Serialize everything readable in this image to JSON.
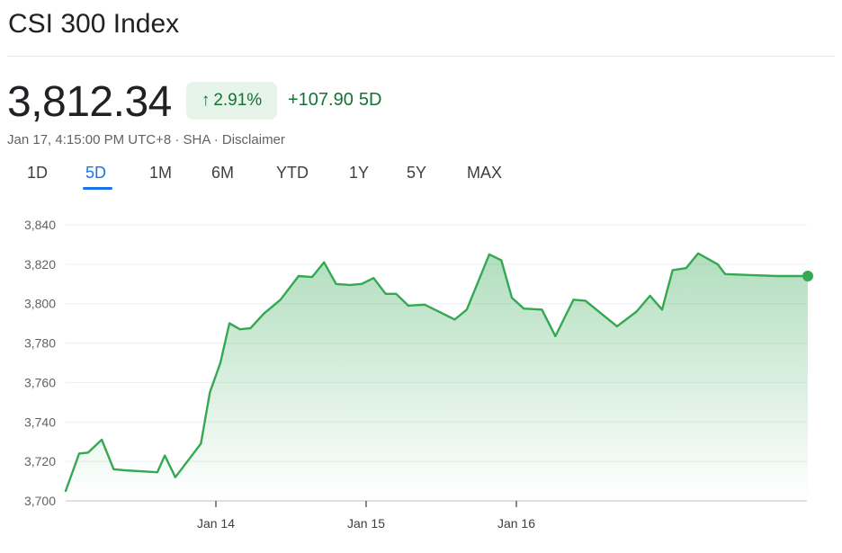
{
  "header": {
    "title": "CSI 300 Index",
    "price": "3,812.34",
    "change_pct": "2.91%",
    "change_abs": "+107.90",
    "change_period": "5D",
    "meta_time": "Jan 17, 4:15:00 PM UTC+8",
    "meta_exchange": "SHA",
    "meta_disclaimer": "Disclaimer"
  },
  "tabs": [
    "1D",
    "5D",
    "1M",
    "6M",
    "YTD",
    "1Y",
    "5Y",
    "MAX"
  ],
  "active_tab": "5D",
  "colors": {
    "up": "#137333",
    "line": "#34a853",
    "accent": "#1a73e8"
  },
  "chart_data": {
    "type": "area",
    "title": "",
    "xlabel": "",
    "ylabel": "",
    "ylim": [
      3700,
      3840
    ],
    "yticks": [
      "3,700",
      "3,720",
      "3,740",
      "3,760",
      "3,780",
      "3,800",
      "3,820",
      "3,840"
    ],
    "xticks": [
      {
        "label": "Jan 14",
        "t": 1.0
      },
      {
        "label": "Jan 15",
        "t": 2.0
      },
      {
        "label": "Jan 16",
        "t": 3.0
      }
    ],
    "grid": true,
    "series": [
      {
        "x": [
          0.0,
          0.09,
          0.15,
          0.24,
          0.32,
          0.39,
          0.61,
          0.66,
          0.73,
          0.83,
          0.9,
          0.96,
          1.03,
          1.09,
          1.16,
          1.23,
          1.32,
          1.43,
          1.55,
          1.64,
          1.72,
          1.8,
          1.89,
          1.97,
          2.05,
          2.13,
          2.2,
          2.28,
          2.39,
          2.59,
          2.67,
          2.75,
          2.82,
          2.9,
          2.97,
          3.05,
          3.17,
          3.26,
          3.38,
          3.46,
          3.67,
          3.8,
          3.89,
          3.97,
          4.04,
          4.13,
          4.21,
          4.34,
          4.39,
          4.56,
          4.74,
          4.84,
          4.94
        ],
        "values": [
          3705,
          3724,
          3724.5,
          3731,
          3716,
          3715.5,
          3714.5,
          3723,
          3712,
          3722,
          3729,
          3755,
          3770,
          3790,
          3787,
          3787.5,
          3795,
          3802,
          3814,
          3813.5,
          3821,
          3810,
          3809.5,
          3810,
          3813,
          3805,
          3805,
          3799,
          3799.5,
          3792,
          3797,
          3812,
          3825,
          3822,
          3803,
          3797.5,
          3797,
          3783.5,
          3802,
          3801.5,
          3788.5,
          3796,
          3804,
          3797,
          3817,
          3818,
          3825.5,
          3820,
          3815,
          3814.5,
          3814,
          3814,
          3814
        ]
      }
    ]
  }
}
